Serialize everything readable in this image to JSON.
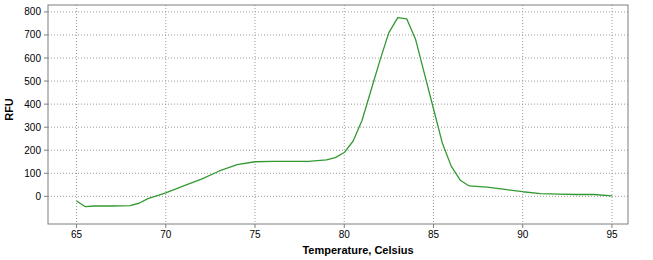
{
  "chart_data": {
    "type": "line",
    "x_label": "Temperature, Celsius",
    "y_label": "RFU",
    "x": [
      65,
      65.5,
      66,
      67,
      68,
      68.5,
      69,
      70,
      71,
      72,
      73,
      74,
      75,
      76,
      77,
      78,
      79,
      79.5,
      80,
      80.5,
      81,
      81.5,
      82,
      82.5,
      83,
      83.5,
      84,
      84.5,
      85,
      85.5,
      86,
      86.5,
      87,
      88,
      89,
      90,
      91,
      92,
      93,
      94,
      95
    ],
    "series": [
      {
        "name": "RFU",
        "color": "#339933",
        "values": [
          -20,
          -45,
          -42,
          -42,
          -40,
          -30,
          -10,
          15,
          45,
          75,
          110,
          138,
          150,
          152,
          152,
          152,
          158,
          168,
          190,
          240,
          330,
          460,
          590,
          710,
          775,
          770,
          680,
          530,
          380,
          230,
          130,
          70,
          45,
          40,
          30,
          20,
          12,
          10,
          8,
          8,
          2
        ]
      }
    ],
    "xlim": [
      63.4,
      95.9
    ],
    "ylim": [
      -120,
      830
    ],
    "xticks": [
      65,
      70,
      75,
      80,
      85,
      90,
      95
    ],
    "yticks": [
      0,
      100,
      200,
      300,
      400,
      500,
      600,
      700,
      800
    ],
    "grid": true
  }
}
